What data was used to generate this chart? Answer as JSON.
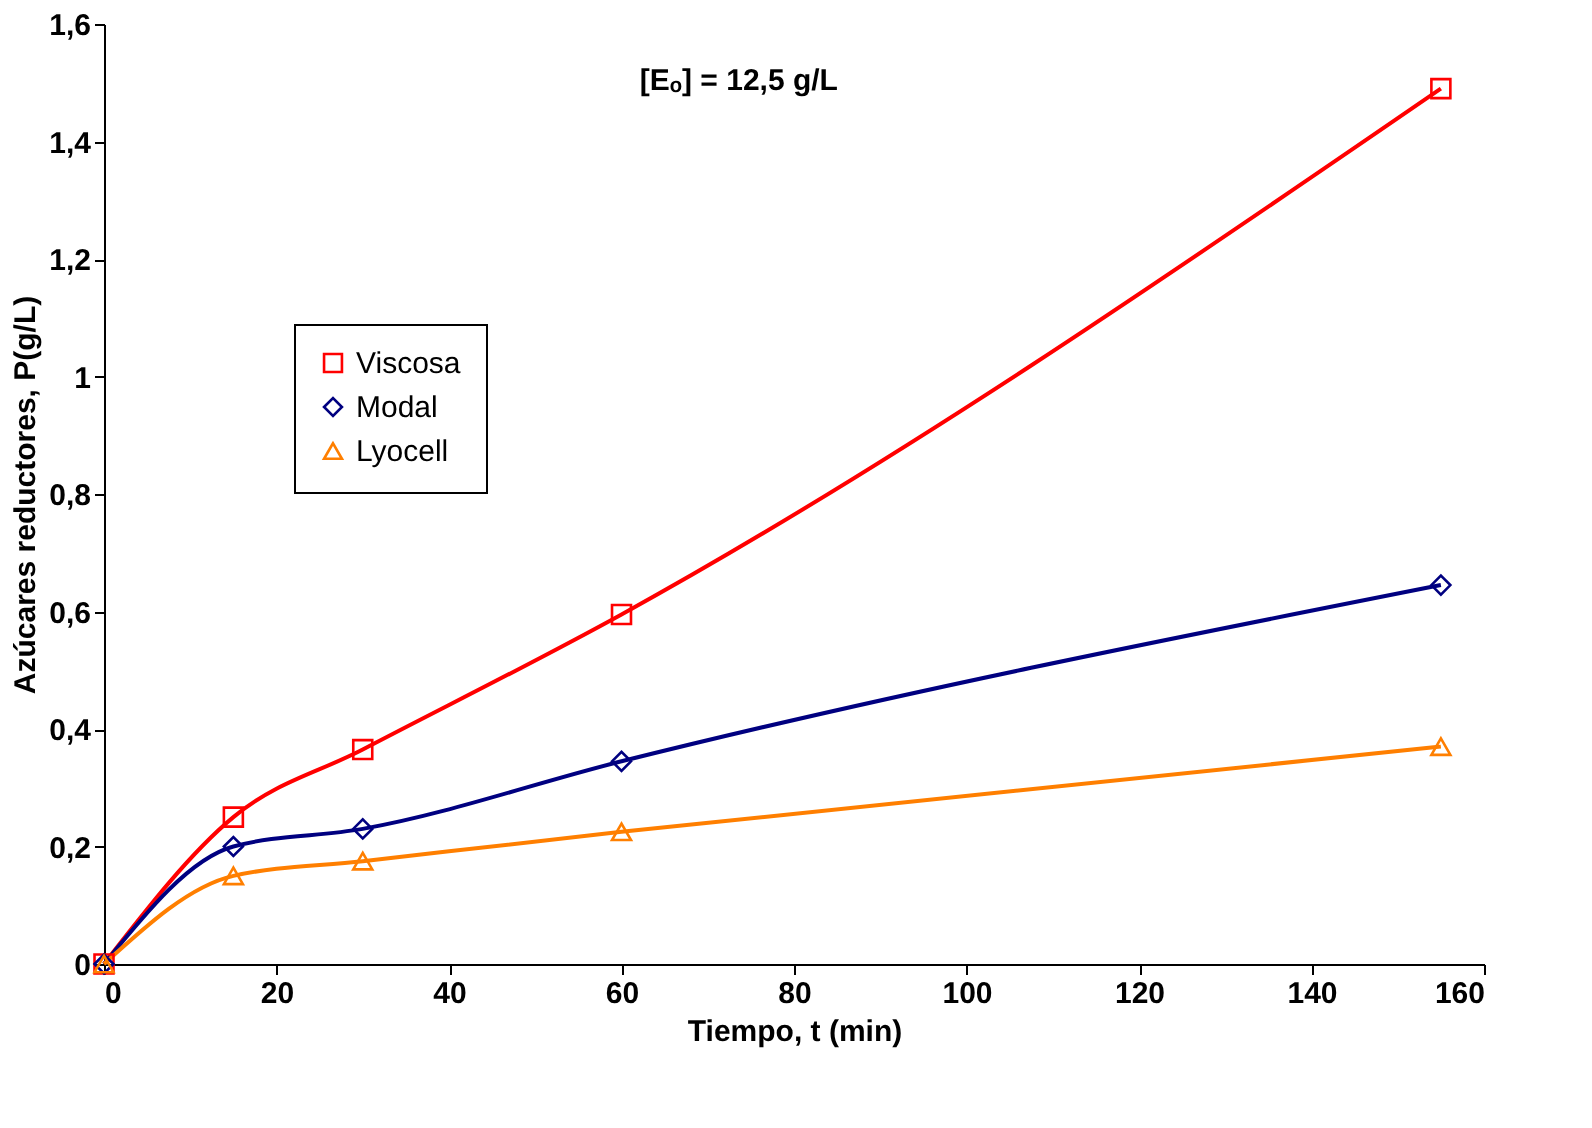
{
  "chart_data": {
    "type": "line",
    "xlabel": "Tiempo, t (min)",
    "ylabel": "Azúcares reductores, P(g/L)",
    "annotations": [
      {
        "text": "[Eₒ] = 12,5 g/L"
      }
    ],
    "x": [
      0,
      15,
      30,
      60,
      155
    ],
    "series": [
      {
        "name": "Viscosa",
        "color": "#ff0000",
        "marker": "square",
        "values": [
          0,
          0.25,
          0.365,
          0.595,
          1.49
        ]
      },
      {
        "name": "Modal",
        "color": "#000080",
        "marker": "diamond",
        "values": [
          0,
          0.2,
          0.23,
          0.345,
          0.645
        ]
      },
      {
        "name": "Lyocell",
        "color": "#ff7f00",
        "marker": "triangle",
        "values": [
          0,
          0.15,
          0.175,
          0.225,
          0.37
        ]
      }
    ],
    "xlim": [
      0,
      160
    ],
    "xticks": [
      0,
      20,
      40,
      60,
      80,
      100,
      120,
      140,
      160
    ],
    "ylim": [
      0,
      1.6
    ],
    "yticks": [
      0,
      {
        "value": 0.2,
        "label": "0,2"
      },
      {
        "value": 0.4,
        "label": "0,4"
      },
      {
        "value": 0.6,
        "label": "0,6"
      },
      {
        "value": 0.8,
        "label": "0,8"
      },
      1,
      {
        "value": 1.2,
        "label": "1,2"
      },
      {
        "value": 1.4,
        "label": "1,4"
      },
      {
        "value": 1.6,
        "label": "1,6"
      }
    ],
    "grid": false,
    "legend": "left",
    "line_style": "solid"
  }
}
